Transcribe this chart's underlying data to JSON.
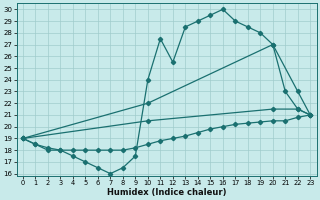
{
  "xlabel": "Humidex (Indice chaleur)",
  "bg_color": "#c8eaea",
  "line_color": "#1a7070",
  "xlim": [
    -0.5,
    23.5
  ],
  "ylim": [
    15.8,
    30.5
  ],
  "xticks": [
    0,
    1,
    2,
    3,
    4,
    5,
    6,
    7,
    8,
    9,
    10,
    11,
    12,
    13,
    14,
    15,
    16,
    17,
    18,
    19,
    20,
    21,
    22,
    23
  ],
  "yticks": [
    16,
    17,
    18,
    19,
    20,
    21,
    22,
    23,
    24,
    25,
    26,
    27,
    28,
    29,
    30
  ],
  "line_jagged_x": [
    0,
    1,
    2,
    3,
    4,
    5,
    6,
    7,
    8,
    9,
    10,
    11,
    12,
    13,
    14,
    15,
    16,
    17,
    18,
    19,
    20,
    21,
    22,
    23
  ],
  "line_jagged_y": [
    19.0,
    18.5,
    18.0,
    18.0,
    17.5,
    17.0,
    16.5,
    16.0,
    16.5,
    17.5,
    24.0,
    27.5,
    25.5,
    28.5,
    29.0,
    29.5,
    30.0,
    29.0,
    28.5,
    28.0,
    27.0,
    23.0,
    21.5,
    21.0
  ],
  "line_upper_x": [
    0,
    10,
    20,
    22,
    23
  ],
  "line_upper_y": [
    19.0,
    22.0,
    27.0,
    23.0,
    21.0
  ],
  "line_mid_x": [
    0,
    10,
    20,
    22,
    23
  ],
  "line_mid_y": [
    19.0,
    20.5,
    21.5,
    21.5,
    21.0
  ],
  "line_flat_x": [
    0,
    1,
    2,
    3,
    4,
    5,
    6,
    7,
    8,
    9,
    10,
    11,
    12,
    13,
    14,
    15,
    16,
    17,
    18,
    19,
    20,
    21,
    22,
    23
  ],
  "line_flat_y": [
    19.0,
    18.5,
    18.2,
    18.0,
    18.0,
    18.0,
    18.0,
    18.0,
    18.0,
    18.2,
    18.5,
    18.8,
    19.0,
    19.2,
    19.5,
    19.8,
    20.0,
    20.2,
    20.3,
    20.4,
    20.5,
    20.5,
    20.8,
    21.0
  ]
}
